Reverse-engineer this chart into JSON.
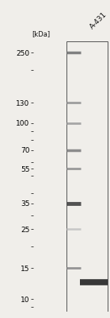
{
  "title": "A-431",
  "kdal_label": "[kDa]",
  "marker_kda": [
    250,
    130,
    100,
    70,
    55,
    35,
    25,
    15,
    10
  ],
  "background_color": "#f0eeea",
  "gel_bg": "#e8e5df",
  "gel_inner_bg": "#f0eeea",
  "border_color": "#555555",
  "marker_bands": [
    {
      "kda": 250,
      "darkness": 0.5,
      "thickness": 2.5
    },
    {
      "kda": 130,
      "darkness": 0.38,
      "thickness": 2.0
    },
    {
      "kda": 100,
      "darkness": 0.35,
      "thickness": 2.0
    },
    {
      "kda": 70,
      "darkness": 0.45,
      "thickness": 2.5
    },
    {
      "kda": 55,
      "darkness": 0.4,
      "thickness": 2.0
    },
    {
      "kda": 35,
      "darkness": 0.68,
      "thickness": 3.5
    },
    {
      "kda": 25,
      "darkness": 0.22,
      "thickness": 1.8
    },
    {
      "kda": 15,
      "darkness": 0.42,
      "thickness": 2.0
    },
    {
      "kda": 10,
      "darkness": 0.0,
      "thickness": 0
    }
  ],
  "sample_bands": [
    {
      "kda": 12.5,
      "darkness": 0.78,
      "thickness": 5.5
    }
  ],
  "ymin": 8.5,
  "ymax": 290,
  "tick_fontsize": 6.5,
  "title_fontsize": 6.5,
  "kdal_fontsize": 6.0
}
